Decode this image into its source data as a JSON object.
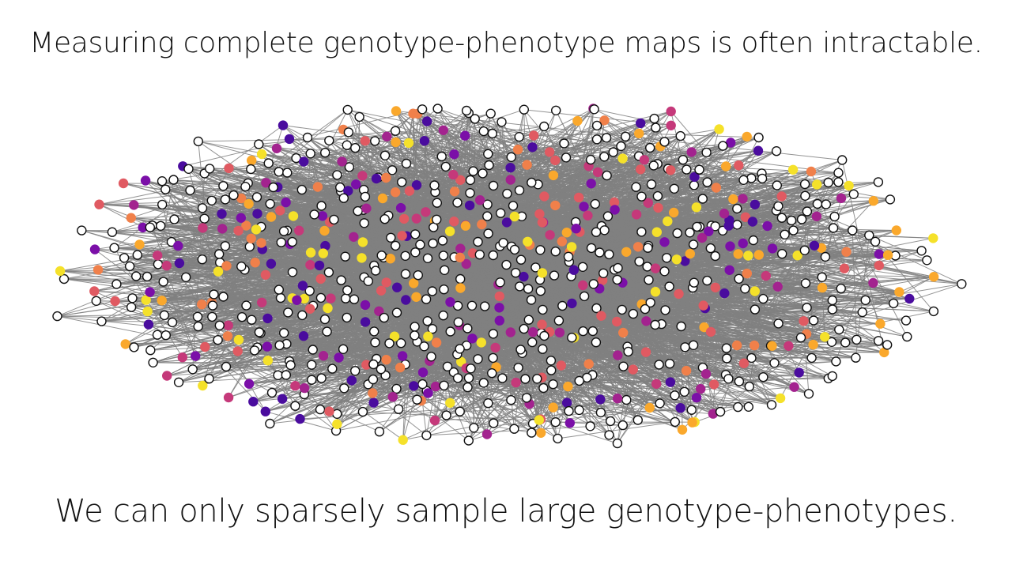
{
  "slide": {
    "title": "Measuring complete genotype-phenotype maps is often intractable.",
    "caption": "We can only sparsely sample large genotype-phenotypes."
  },
  "network": {
    "description_colors": {
      "unmeasured_fill": "#ffffff",
      "node_outline": "#111111",
      "edge": "#808080"
    },
    "phenotype_palette": [
      "#4a0c9e",
      "#7b0fa8",
      "#a3238f",
      "#c5397a",
      "#e05a62",
      "#f0804a",
      "#faa82c",
      "#f5e12a"
    ],
    "node_count": 900,
    "measured_fraction": 0.4,
    "layout": "ellipse-spring"
  }
}
